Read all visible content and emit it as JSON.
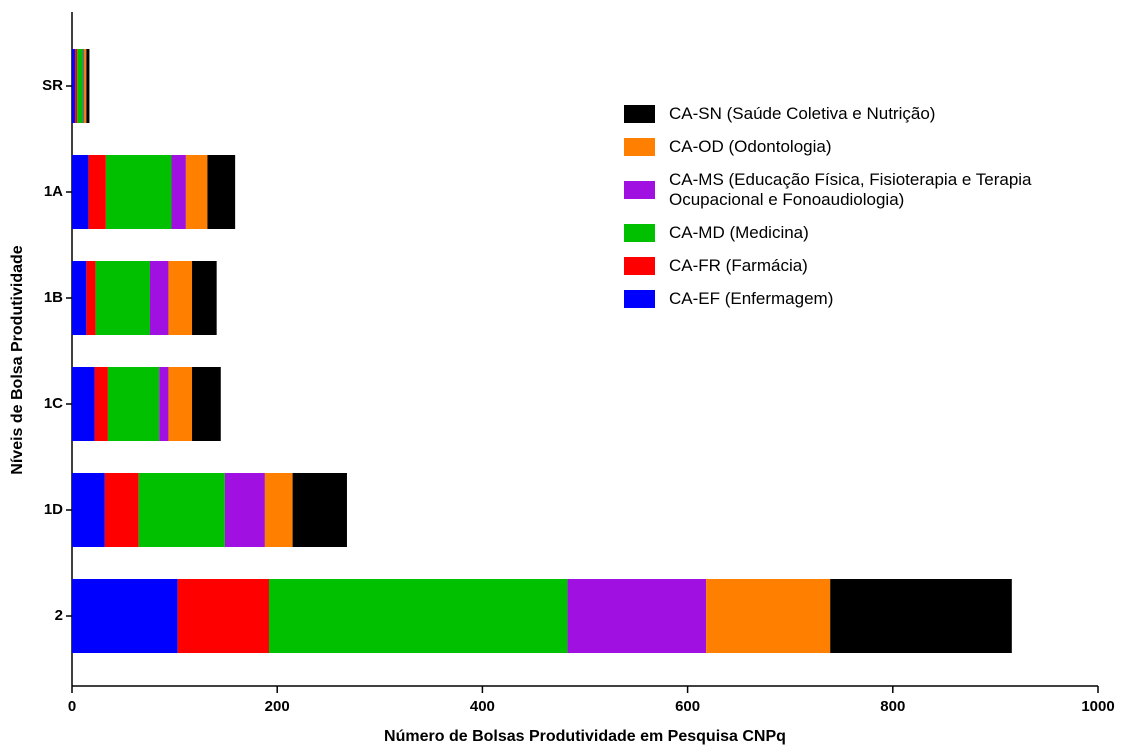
{
  "chart_data": {
    "type": "stacked-barh",
    "x_label": "Número de Bolsas Produtividade em Pesquisa CNPq",
    "y_label": "Níveis de Bolsa Produtividade",
    "categories": [
      "SR",
      "1A",
      "1B",
      "1C",
      "1D",
      "2"
    ],
    "series": [
      {
        "name": "CA-EF (Enfermagem)",
        "color": "#0000ff",
        "values": [
          3,
          16,
          14,
          22,
          32,
          103
        ]
      },
      {
        "name": "CA-FR (Farmácia)",
        "color": "#ff0000",
        "values": [
          2,
          17,
          9,
          13,
          33,
          89
        ]
      },
      {
        "name": "CA-MD (Medicina)",
        "color": "#00c000",
        "values": [
          6,
          64,
          53,
          50,
          84,
          291
        ]
      },
      {
        "name": "CA-MS (Educação Física, Fisioterapia e Terapia Ocupacional e Fonoaudiologia)",
        "color": "#a010e0",
        "values": [
          1,
          14,
          18,
          9,
          39,
          135
        ]
      },
      {
        "name": "CA-OD (Odontologia)",
        "color": "#ff8000",
        "values": [
          2,
          21,
          23,
          23,
          27,
          121
        ]
      },
      {
        "name": "CA-SN (Saúde Coletiva e Nutrição)",
        "color": "#000000",
        "values": [
          3,
          27,
          24,
          28,
          53,
          177
        ]
      }
    ],
    "xlim": [
      0,
      1000
    ],
    "xticks": [
      0,
      200,
      400,
      600,
      800,
      1000
    ],
    "legend_position": "upper right",
    "legend_order": "reversed"
  }
}
